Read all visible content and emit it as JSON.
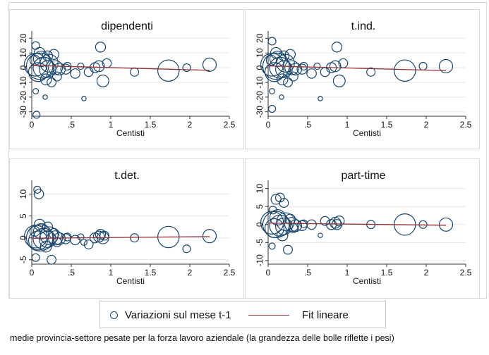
{
  "chart_data": [
    {
      "type": "scatter",
      "title": "dipendenti",
      "xlabel": "Centisti",
      "xlim": [
        0,
        2.5
      ],
      "ylim": [
        -33,
        23
      ],
      "xticks": [
        "0",
        ".5",
        "1",
        "1.5",
        "2",
        "2.5"
      ],
      "xtick_values": [
        0,
        0.5,
        1,
        1.5,
        2,
        2.5
      ],
      "yticks": [
        "-30",
        "-20",
        "-10",
        "0",
        "10",
        "20"
      ],
      "ytick_values": [
        -30,
        -20,
        -10,
        0,
        10,
        20
      ],
      "bubbles": [
        [
          0.1,
          1,
          3.5
        ],
        [
          0.05,
          2,
          2.6
        ],
        [
          0.15,
          0,
          2.2
        ],
        [
          0.22,
          3,
          1.6
        ],
        [
          0.08,
          -3,
          1.8
        ],
        [
          0.2,
          -1,
          1.4
        ],
        [
          0.12,
          6,
          1.2
        ],
        [
          0.3,
          0,
          1.0
        ],
        [
          0.35,
          -1,
          0.7
        ],
        [
          0.43,
          -1,
          0.5
        ],
        [
          0.05,
          15,
          0.3
        ],
        [
          0.06,
          -32,
          0.25
        ],
        [
          0.05,
          -16,
          0.15
        ],
        [
          0.1,
          10,
          0.6
        ],
        [
          0.18,
          -8,
          0.6
        ],
        [
          0.25,
          -10,
          0.4
        ],
        [
          0.2,
          8,
          0.5
        ],
        [
          0.55,
          -4,
          0.45
        ],
        [
          0.62,
          1,
          0.2
        ],
        [
          0.66,
          -21,
          0.1
        ],
        [
          0.72,
          -3,
          0.4
        ],
        [
          0.8,
          0,
          0.5
        ],
        [
          0.85,
          1,
          0.6
        ],
        [
          0.87,
          14,
          0.5
        ],
        [
          0.9,
          -9,
          0.7
        ],
        [
          0.95,
          3,
          0.4
        ],
        [
          1.3,
          -3,
          0.35
        ],
        [
          1.73,
          -2,
          2.3
        ],
        [
          1.96,
          0,
          0.3
        ],
        [
          2.25,
          2,
          0.9
        ],
        [
          0.04,
          5,
          0.5
        ],
        [
          0.28,
          9,
          0.5
        ],
        [
          0.32,
          -6,
          0.4
        ],
        [
          0.17,
          -20,
          0.1
        ],
        [
          0.45,
          1,
          0.3
        ]
      ],
      "fit": {
        "x": [
          0.0,
          2.25
        ],
        "y": [
          1.5,
          -1.8
        ]
      }
    },
    {
      "type": "scatter",
      "title": "t.ind.",
      "xlabel": "Centisti",
      "xlim": [
        0,
        2.5
      ],
      "ylim": [
        -33,
        23
      ],
      "xticks": [
        "0",
        ".5",
        "1",
        "1.5",
        "2",
        "2.5"
      ],
      "xtick_values": [
        0,
        0.5,
        1,
        1.5,
        2,
        2.5
      ],
      "yticks": [
        "-30",
        "-20",
        "-10",
        "0",
        "10",
        "20"
      ],
      "ytick_values": [
        -30,
        -20,
        -10,
        0,
        10,
        20
      ],
      "bubbles": [
        [
          0.1,
          1,
          3.5
        ],
        [
          0.05,
          2,
          2.6
        ],
        [
          0.15,
          0,
          2.2
        ],
        [
          0.22,
          3,
          1.6
        ],
        [
          0.08,
          -3,
          1.8
        ],
        [
          0.2,
          -1,
          1.4
        ],
        [
          0.12,
          6,
          1.2
        ],
        [
          0.3,
          0,
          1.0
        ],
        [
          0.35,
          -1,
          0.7
        ],
        [
          0.43,
          -1,
          0.5
        ],
        [
          0.05,
          18,
          0.3
        ],
        [
          0.05,
          -28,
          0.25
        ],
        [
          0.05,
          -16,
          0.15
        ],
        [
          0.1,
          10,
          0.6
        ],
        [
          0.18,
          -8,
          0.6
        ],
        [
          0.25,
          -10,
          0.4
        ],
        [
          0.2,
          8,
          0.5
        ],
        [
          0.55,
          -4,
          0.45
        ],
        [
          0.62,
          1,
          0.2
        ],
        [
          0.66,
          -21,
          0.1
        ],
        [
          0.72,
          -3,
          0.4
        ],
        [
          0.8,
          0,
          0.5
        ],
        [
          0.85,
          1,
          0.6
        ],
        [
          0.87,
          14,
          0.5
        ],
        [
          0.9,
          -9,
          0.7
        ],
        [
          0.95,
          3,
          0.4
        ],
        [
          1.3,
          -3,
          0.35
        ],
        [
          1.73,
          -2,
          2.3
        ],
        [
          1.96,
          1,
          0.3
        ],
        [
          2.25,
          1,
          0.9
        ],
        [
          0.04,
          5,
          0.5
        ],
        [
          0.28,
          9,
          0.5
        ],
        [
          0.32,
          -6,
          0.4
        ],
        [
          0.17,
          -20,
          0.1
        ],
        [
          0.45,
          1,
          0.3
        ]
      ],
      "fit": {
        "x": [
          0.0,
          2.25
        ],
        "y": [
          1.2,
          -2.0
        ]
      }
    },
    {
      "type": "scatter",
      "title": "t.det.",
      "xlabel": "Centisti",
      "xlim": [
        0,
        2.5
      ],
      "ylim": [
        -6,
        12.5
      ],
      "xticks": [
        "0",
        ".5",
        "1",
        "1.5",
        "2",
        "2.5"
      ],
      "xtick_values": [
        0,
        0.5,
        1,
        1.5,
        2,
        2.5
      ],
      "yticks": [
        "-5",
        "0",
        "5",
        "10"
      ],
      "ytick_values": [
        -5,
        0,
        5,
        10
      ],
      "bubbles": [
        [
          0.1,
          0,
          3.5
        ],
        [
          0.05,
          0.3,
          2.6
        ],
        [
          0.15,
          -0.2,
          2.2
        ],
        [
          0.22,
          0.5,
          1.6
        ],
        [
          0.08,
          -0.6,
          1.8
        ],
        [
          0.2,
          -0.3,
          1.4
        ],
        [
          0.12,
          1.5,
          1.2
        ],
        [
          0.3,
          0,
          1.0
        ],
        [
          0.35,
          -0.2,
          0.7
        ],
        [
          0.43,
          -0.2,
          0.5
        ],
        [
          0.07,
          11,
          0.25
        ],
        [
          0.09,
          10,
          0.45
        ],
        [
          0.05,
          -4.5,
          0.3
        ],
        [
          0.1,
          3,
          0.6
        ],
        [
          0.18,
          -2,
          0.6
        ],
        [
          0.25,
          -5,
          0.4
        ],
        [
          0.2,
          2.5,
          0.5
        ],
        [
          0.55,
          -0.5,
          0.45
        ],
        [
          0.62,
          0.2,
          0.2
        ],
        [
          0.66,
          -1,
          0.2
        ],
        [
          0.72,
          -1.5,
          0.4
        ],
        [
          0.8,
          0,
          0.5
        ],
        [
          0.85,
          0.3,
          0.6
        ],
        [
          0.87,
          0.8,
          0.5
        ],
        [
          0.9,
          0,
          0.7
        ],
        [
          0.92,
          0.5,
          0.4
        ],
        [
          1.3,
          0,
          0.35
        ],
        [
          1.73,
          0.2,
          2.3
        ],
        [
          1.96,
          -2.5,
          0.3
        ],
        [
          2.25,
          0.4,
          0.9
        ],
        [
          0.04,
          1.5,
          0.5
        ],
        [
          0.28,
          1,
          0.5
        ],
        [
          0.32,
          -1,
          0.4
        ],
        [
          0.45,
          0.2,
          0.3
        ]
      ],
      "fit": {
        "x": [
          0.0,
          2.25
        ],
        "y": [
          -0.1,
          0.3
        ]
      }
    },
    {
      "type": "scatter",
      "title": "part-time",
      "xlabel": "Centisti",
      "xlim": [
        0,
        2.5
      ],
      "ylim": [
        -11,
        11.5
      ],
      "xticks": [
        "0",
        ".5",
        "1",
        "1.5",
        "2",
        "2.5"
      ],
      "xtick_values": [
        0,
        0.5,
        1,
        1.5,
        2,
        2.5
      ],
      "yticks": [
        "-10",
        "-5",
        "0",
        "5",
        "10"
      ],
      "ytick_values": [
        -10,
        -5,
        0,
        5,
        10
      ],
      "bubbles": [
        [
          0.1,
          0,
          3.5
        ],
        [
          0.05,
          0.5,
          2.6
        ],
        [
          0.15,
          -0.3,
          2.2
        ],
        [
          0.22,
          0.8,
          1.6
        ],
        [
          0.08,
          -1,
          1.8
        ],
        [
          0.2,
          -0.5,
          1.4
        ],
        [
          0.12,
          2,
          1.2
        ],
        [
          0.3,
          0,
          1.0
        ],
        [
          0.35,
          -0.3,
          0.7
        ],
        [
          0.43,
          -0.3,
          0.5
        ],
        [
          0.1,
          7,
          0.5
        ],
        [
          0.15,
          7.5,
          0.4
        ],
        [
          0.2,
          6,
          0.4
        ],
        [
          0.06,
          4,
          0.3
        ],
        [
          0.05,
          -6,
          0.2
        ],
        [
          0.18,
          -3,
          0.6
        ],
        [
          0.25,
          -7,
          0.4
        ],
        [
          0.55,
          0,
          0.45
        ],
        [
          0.66,
          -3,
          0.1
        ],
        [
          0.72,
          1,
          0.4
        ],
        [
          0.8,
          0,
          0.5
        ],
        [
          0.85,
          0.5,
          0.6
        ],
        [
          0.87,
          0,
          0.5
        ],
        [
          0.9,
          1,
          0.5
        ],
        [
          1.3,
          0,
          0.35
        ],
        [
          1.73,
          0,
          2.3
        ],
        [
          1.96,
          0,
          0.3
        ],
        [
          2.25,
          0,
          0.9
        ],
        [
          0.28,
          1.5,
          0.5
        ],
        [
          0.32,
          -1,
          0.4
        ],
        [
          0.45,
          0.2,
          0.3
        ]
      ],
      "fit": {
        "x": [
          0.0,
          2.25
        ],
        "y": [
          0.4,
          -0.2
        ]
      }
    }
  ],
  "legend": {
    "bubbles_label": "Variazioni sul mese t-1",
    "fit_label": "Fit lineare"
  },
  "note": "medie provincia-settore pesate per la forza lavoro aziendale (la grandezza delle bolle riflette i pesi)",
  "colors": {
    "bubble": "#1a476f",
    "fit": "#90353b",
    "grid": "#e6e6e6",
    "panel_border": "#d9d9d9"
  }
}
